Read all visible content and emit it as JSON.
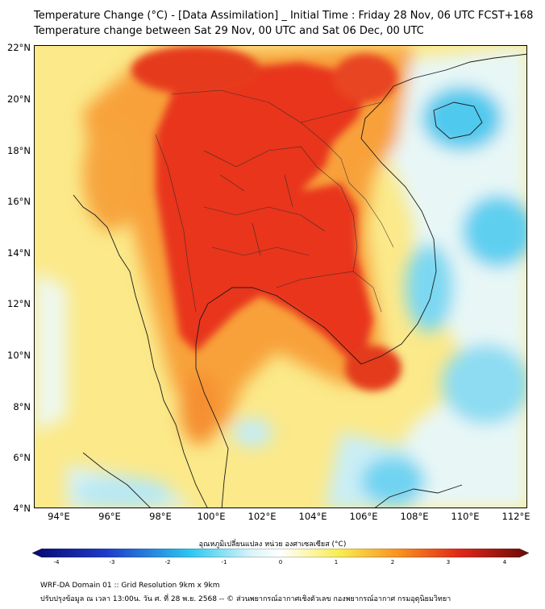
{
  "header": {
    "title_line1": "Temperature Change (°C) - [Data Assimilation] _ Initial Time : Friday 28 Nov, 06 UTC FCST+168",
    "title_line2": "Temperature change between Sat 29 Nov, 00 UTC and Sat 06 Dec, 00 UTC"
  },
  "map": {
    "lat_labels": [
      "22°N",
      "20°N",
      "18°N",
      "16°N",
      "14°N",
      "12°N",
      "10°N",
      "8°N",
      "6°N",
      "4°N"
    ],
    "lon_labels": [
      "94°E",
      "96°E",
      "98°E",
      "100°E",
      "102°E",
      "104°E",
      "106°E",
      "108°E",
      "110°E",
      "112°E"
    ]
  },
  "colorbar": {
    "title": "อุณหภูมิเปลี่ยนแปลง หน่วย องศาเซลเซียส (°C)",
    "ticks": [
      "-4",
      "-3",
      "-2",
      "-1",
      "0",
      "1",
      "2",
      "3",
      "4"
    ],
    "colors": {
      "min": "#080870",
      "blue": "#1e3cc8",
      "cyan": "#2ec8f0",
      "pale": "#d8f4f8",
      "white": "#ffffff",
      "yellow": "#f8ec50",
      "orange": "#f89020",
      "red": "#e02818",
      "max": "#6a0a08"
    }
  },
  "footer": {
    "line1": "WRF-DA Domain 01 :: Grid Resolution 9km x 9km",
    "line2": "ปรับปรุงข้อมูล ณ เวลา 13:00น. วัน ศ. ที่ 28 พ.ย. 2568 -- © ส่วนพยากรณ์อากาศเชิงตัวเลข กองพยากรณ์อากาศ กรมอุตุนิยมวิทยา"
  }
}
